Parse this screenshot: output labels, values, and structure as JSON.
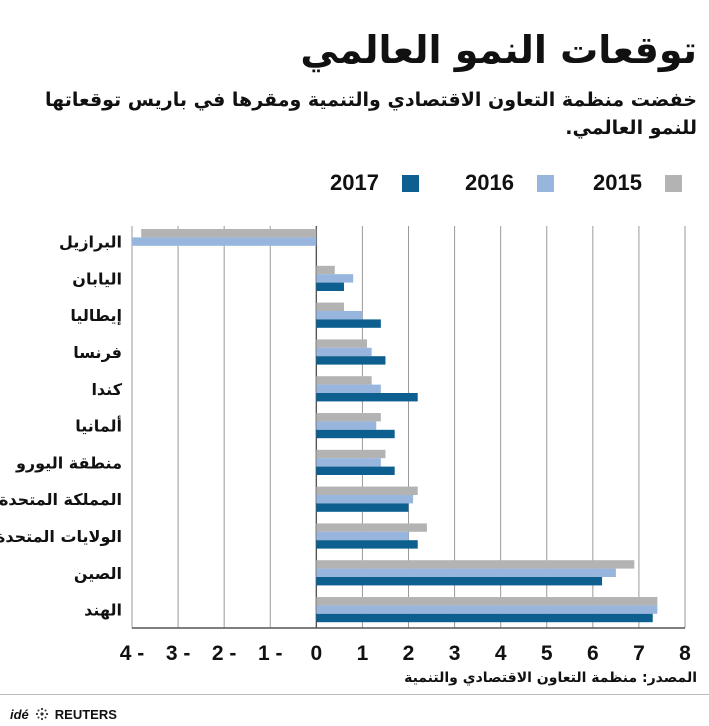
{
  "title": "توقعات النمو العالمي",
  "subtitle": "خفضت منظمة التعاون الاقتصادي والتنمية ومقرها في باريس توقعاتها للنمو العالمي.",
  "source": "المصدر: منظمة التعاون الاقتصادي والتنمية",
  "footer": {
    "ide": "idé",
    "reuters": "REUTERS"
  },
  "colors": {
    "2015": "#b3b3b3",
    "2016": "#98b6dd",
    "2017": "#0d5f8f"
  },
  "chart_data": {
    "type": "bar",
    "orientation": "horizontal",
    "title": "توقعات النمو العالمي",
    "categories": [
      "البرازيل",
      "اليابان",
      "إيطاليا",
      "فرنسا",
      "كندا",
      "ألمانيا",
      "منطقة اليورو",
      "المملكة المتحدة",
      "الولايات المتحدة",
      "الصين",
      "الهند"
    ],
    "series": [
      {
        "name": "2015",
        "values": [
          -3.8,
          0.4,
          0.6,
          1.1,
          1.2,
          1.4,
          1.5,
          2.2,
          2.4,
          6.9,
          7.4
        ]
      },
      {
        "name": "2016",
        "values": [
          -4.0,
          0.8,
          1.0,
          1.2,
          1.4,
          1.3,
          1.4,
          2.1,
          2.0,
          6.5,
          7.4
        ]
      },
      {
        "name": "2017",
        "values": [
          0.0,
          0.6,
          1.4,
          1.5,
          2.2,
          1.7,
          1.7,
          2.0,
          2.2,
          6.2,
          7.3
        ]
      }
    ],
    "legend_order": [
      "2017",
      "2016",
      "2015"
    ],
    "legend_position": "top",
    "xlim": [
      -4,
      8
    ],
    "xticks": [
      -4,
      -3,
      -2,
      -1,
      0,
      1,
      2,
      3,
      4,
      5,
      6,
      7,
      8
    ],
    "xtick_labels": [
      "4 -",
      "3 -",
      "2 -",
      "1 -",
      "0",
      "1",
      "2",
      "3",
      "4",
      "5",
      "6",
      "7",
      "8"
    ],
    "grid": true,
    "xlabel": "",
    "ylabel": ""
  }
}
